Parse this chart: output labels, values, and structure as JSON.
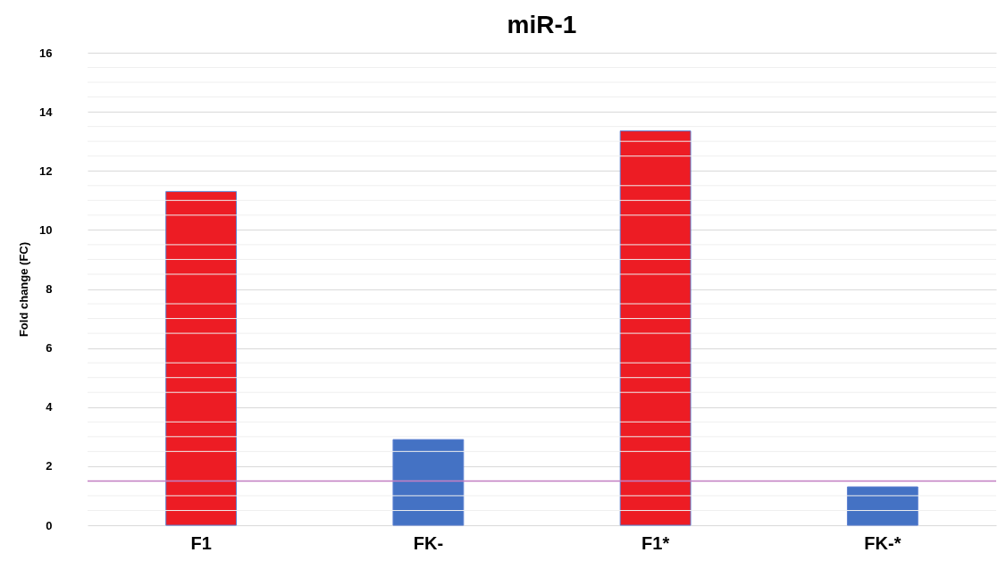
{
  "chart_data": {
    "type": "bar",
    "title": "miR-1",
    "ylabel": "Fold change (FC)",
    "categories": [
      "F1",
      "FK-",
      "F1*",
      "FK-*"
    ],
    "values": [
      11.3,
      2.9,
      13.35,
      1.3
    ],
    "colors": [
      "#ed1c24",
      "#4472c4",
      "#ed1c24",
      "#4472c4"
    ],
    "ylim": [
      0,
      16
    ],
    "yticks": [
      0,
      2,
      4,
      6,
      8,
      10,
      12,
      14,
      16
    ],
    "grid": "y",
    "ref_lines": [
      {
        "axis": "y",
        "value": 1.5,
        "color": "#c27ec2"
      }
    ]
  }
}
